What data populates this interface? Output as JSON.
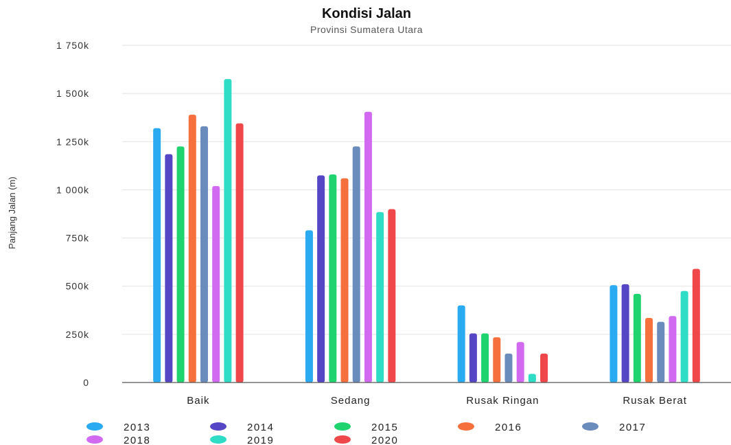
{
  "chart_data": {
    "type": "bar",
    "title": "Kondisi Jalan",
    "subtitle": "Provinsi Sumatera Utara",
    "ylabel": "Panjang Jalan (m)",
    "xlabel": "",
    "ylim": [
      0,
      1750
    ],
    "yticks": [
      0,
      250,
      500,
      750,
      1000,
      1250,
      1500,
      1750
    ],
    "ytick_labels": [
      "0",
      "250k",
      "500k",
      "750k",
      "1 000k",
      "1 250k",
      "1 500k",
      "1 750k"
    ],
    "grid": true,
    "legend_position": "bottom",
    "categories": [
      "Baik",
      "Sedang",
      "Rusak Ringan",
      "Rusak Berat"
    ],
    "series": [
      {
        "name": "2013",
        "color": "#2aaaf0",
        "values": [
          1320,
          790,
          400,
          505
        ]
      },
      {
        "name": "2014",
        "color": "#5446c4",
        "values": [
          1185,
          1075,
          255,
          510
        ]
      },
      {
        "name": "2015",
        "color": "#1fd46e",
        "values": [
          1225,
          1080,
          255,
          460
        ]
      },
      {
        "name": "2016",
        "color": "#f5703d",
        "values": [
          1390,
          1060,
          235,
          335
        ]
      },
      {
        "name": "2017",
        "color": "#6a8cbd",
        "values": [
          1330,
          1225,
          150,
          315
        ]
      },
      {
        "name": "2018",
        "color": "#d16af0",
        "values": [
          1020,
          1405,
          210,
          345
        ]
      },
      {
        "name": "2019",
        "color": "#2fdcc6",
        "values": [
          1575,
          885,
          45,
          475
        ]
      },
      {
        "name": "2020",
        "color": "#f0474a",
        "values": [
          1345,
          900,
          150,
          590
        ]
      }
    ]
  }
}
